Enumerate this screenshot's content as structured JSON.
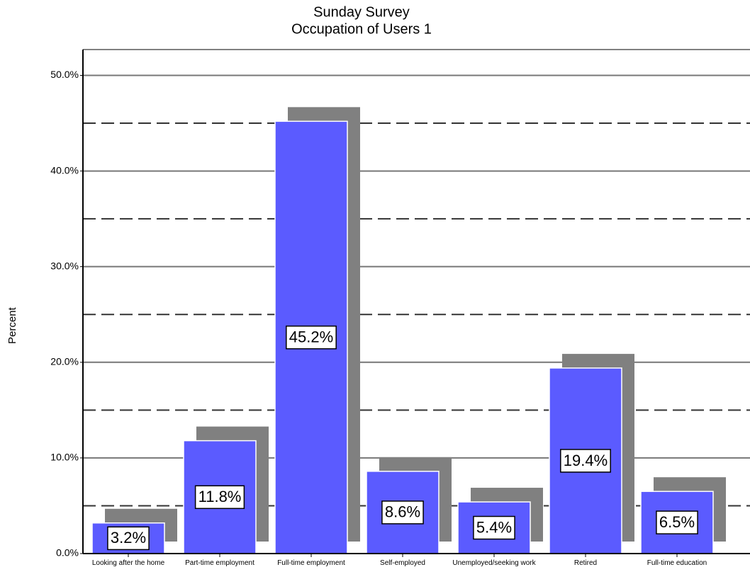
{
  "chart_data": {
    "type": "bar",
    "title": [
      "Sunday Survey",
      "Occupation of Users 1"
    ],
    "y_label": "Percent",
    "categories": [
      "Looking after the home",
      "Part-time employment",
      "Full-time employment",
      "Self-employed",
      "Unemployed/seeking work",
      "Retired",
      "Full-time education"
    ],
    "values": [
      3.2,
      11.8,
      45.2,
      8.6,
      5.4,
      19.4,
      6.5
    ],
    "value_labels": [
      "3.2%",
      "11.8%",
      "45.2%",
      "8.6%",
      "5.4%",
      "19.4%",
      "6.5%"
    ],
    "color": "#5b5bff",
    "shadow_color": "#808080",
    "ylim": [
      0,
      52.7
    ],
    "yticks": [
      {
        "value": 0,
        "label": "0.0%"
      },
      {
        "value": 10,
        "label": "10.0%"
      },
      {
        "value": 20,
        "label": "20.0%"
      },
      {
        "value": 30,
        "label": "30.0%"
      },
      {
        "value": 40,
        "label": "40.0%"
      },
      {
        "value": 50,
        "label": "50.0%"
      }
    ],
    "minor_grid": [
      5,
      15,
      25,
      35,
      45
    ],
    "grid": true
  }
}
